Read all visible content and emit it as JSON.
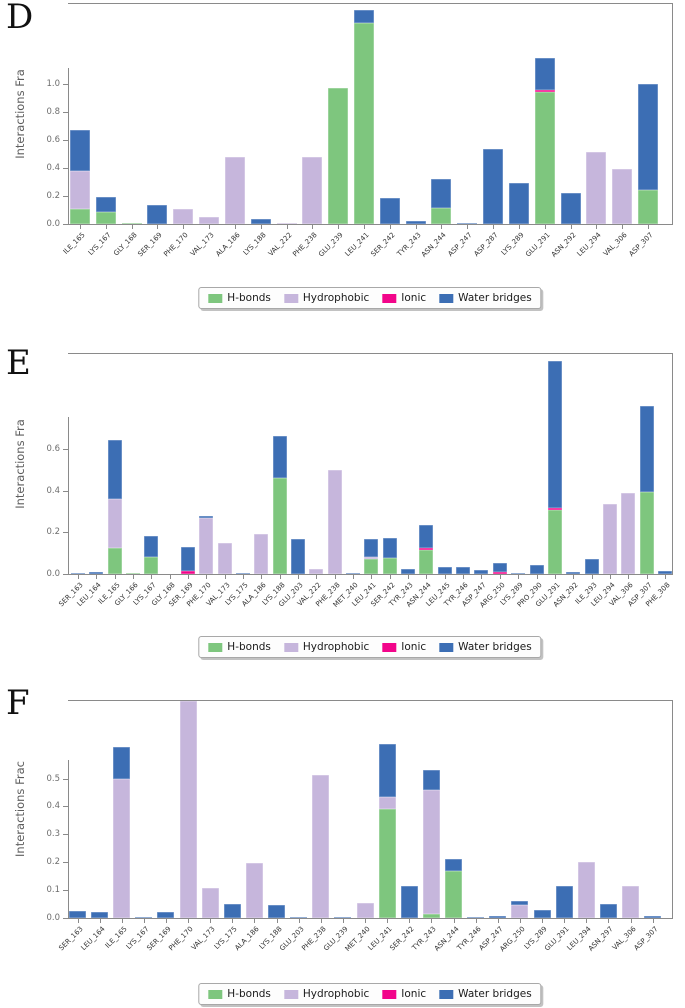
{
  "colors": {
    "hbonds": "#7ec67e",
    "hydrophobic": "#c6b6dc",
    "ionic": "#f2058a",
    "water": "#3c6eb4",
    "spine": "#8a8a8a"
  },
  "legend": {
    "items": [
      {
        "key": "hbonds",
        "label": "H-bonds"
      },
      {
        "key": "hydrophobic",
        "label": "Hydrophobic"
      },
      {
        "key": "ionic",
        "label": "Ionic"
      },
      {
        "key": "water",
        "label": "Water bridges"
      }
    ]
  },
  "chart_data": [
    {
      "type": "bar",
      "panel": "D",
      "ylabel": "Interactions Fra",
      "ylim": [
        0,
        1.58
      ],
      "yticks": [
        "0.0",
        "0.2",
        "0.4",
        "0.6",
        "0.8",
        "1.0"
      ],
      "legend_position": "bottom-center",
      "grid": false,
      "categories": [
        "ILE_165",
        "LYS_167",
        "GLY_168",
        "SER_169",
        "PHE_170",
        "VAL_173",
        "ALA_186",
        "LYS_188",
        "VAL_222",
        "PHE_238",
        "GLU_239",
        "LEU_241",
        "SER_242",
        "TYR_243",
        "ASN_244",
        "ASP_247",
        "ASP_287",
        "LYS_289",
        "GLU_291",
        "ASN_292",
        "LEU_294",
        "VAL_306",
        "ASP_307"
      ],
      "series": [
        {
          "name": "H-bonds",
          "key": "hbonds",
          "values": [
            0.11,
            0.085,
            0.01,
            0,
            0,
            0,
            0,
            0,
            0,
            0,
            0.975,
            1.435,
            0,
            0,
            0.115,
            0,
            0,
            0,
            0.945,
            0,
            0,
            0,
            0.245
          ]
        },
        {
          "name": "Hydrophobic",
          "key": "hydrophobic",
          "values": [
            0.27,
            0,
            0,
            0,
            0.105,
            0.05,
            0.48,
            0,
            0.005,
            0.48,
            0,
            0,
            0,
            0,
            0,
            0,
            0,
            0,
            0,
            0,
            0.515,
            0.395,
            0
          ]
        },
        {
          "name": "Ionic",
          "key": "ionic",
          "values": [
            0,
            0,
            0,
            0,
            0,
            0,
            0,
            0,
            0,
            0,
            0,
            0,
            0,
            0,
            0,
            0,
            0,
            0,
            0.01,
            0,
            0,
            0,
            0
          ]
        },
        {
          "name": "Water bridges",
          "key": "water",
          "values": [
            0.29,
            0.105,
            0,
            0.135,
            0,
            0,
            0,
            0.035,
            0,
            0,
            0,
            0.095,
            0.185,
            0.02,
            0.21,
            0.005,
            0.535,
            0.29,
            0.235,
            0.22,
            0,
            0,
            0.755
          ]
        }
      ]
    },
    {
      "type": "bar",
      "panel": "E",
      "ylabel": "Interactions Fra",
      "ylim": [
        0,
        1.0625
      ],
      "yticks": [
        "0.0",
        "0.2",
        "0.4",
        "0.6"
      ],
      "legend_position": "bottom-center",
      "grid": false,
      "categories": [
        "SER_163",
        "LEU_164",
        "ILE_165",
        "GLY_166",
        "LYS_167",
        "GLY_168",
        "SER_169",
        "PHE_170",
        "VAL_173",
        "LYS_175",
        "ALA_186",
        "LYS_188",
        "GLU_203",
        "VAL_222",
        "PHE_238",
        "MET_240",
        "LEU_241",
        "SER_242",
        "TYR_243",
        "ASN_244",
        "LEU_245",
        "TYR_246",
        "ASP_247",
        "ARG_250",
        "LYS_289",
        "PRO_290",
        "GLU_291",
        "ASN_292",
        "ILE_293",
        "LEU_294",
        "VAL_306",
        "ASP_307",
        "PHE_308"
      ],
      "series": [
        {
          "name": "H-bonds",
          "key": "hbonds",
          "values": [
            0,
            0,
            0.125,
            0.005,
            0.08,
            0,
            0,
            0,
            0,
            0,
            0,
            0.46,
            0,
            0,
            0,
            0,
            0.07,
            0.078,
            0,
            0.115,
            0,
            0,
            0,
            0,
            0,
            0,
            0.308,
            0,
            0,
            0,
            0,
            0.395,
            0
          ]
        },
        {
          "name": "Hydrophobic",
          "key": "hydrophobic",
          "values": [
            0,
            0,
            0.235,
            0,
            0,
            0,
            0,
            0.27,
            0.15,
            0,
            0.19,
            0,
            0,
            0.025,
            0.5,
            0,
            0.013,
            0,
            0,
            0,
            0,
            0,
            0,
            0,
            0,
            0,
            0,
            0,
            0,
            0.335,
            0.39,
            0,
            0
          ]
        },
        {
          "name": "Ionic",
          "key": "ionic",
          "values": [
            0,
            0,
            0,
            0,
            0,
            0,
            0.015,
            0,
            0,
            0,
            0,
            0,
            0,
            0,
            0,
            0,
            0,
            0,
            0,
            0.012,
            0,
            0,
            0,
            0.012,
            0,
            0,
            0.01,
            0,
            0,
            0,
            0,
            0,
            0
          ]
        },
        {
          "name": "Water bridges",
          "key": "water",
          "values": [
            0.005,
            0.008,
            0.285,
            0,
            0.105,
            0,
            0.115,
            0.01,
            0,
            0.003,
            0,
            0.205,
            0.17,
            0,
            0,
            0.003,
            0.085,
            0.097,
            0.025,
            0.108,
            0.035,
            0.035,
            0.02,
            0.042,
            0.003,
            0.045,
            0.707,
            0.01,
            0.07,
            0,
            0,
            0.415,
            0.015
          ]
        }
      ]
    },
    {
      "type": "bar",
      "panel": "F",
      "ylabel": "Interactions Frac",
      "ylim": [
        0,
        0.782
      ],
      "yticks": [
        "0.0",
        "0.1",
        "0.2",
        "0.3",
        "0.4",
        "0.5"
      ],
      "legend_position": "bottom-center",
      "grid": false,
      "categories": [
        "SER_163",
        "LEU_164",
        "ILE_165",
        "LYS_167",
        "SER_169",
        "PHE_170",
        "VAL_173",
        "LYS_175",
        "ALA_186",
        "LYS_188",
        "GLU_203",
        "PHE_238",
        "GLU_239",
        "MET_240",
        "LEU_241",
        "SER_242",
        "TYR_243",
        "ASN_244",
        "TYR_246",
        "ASP_247",
        "ARG_250",
        "LYS_289",
        "GLU_291",
        "LEU_294",
        "ASN_297",
        "VAL_306",
        "ASP_307"
      ],
      "series": [
        {
          "name": "H-bonds",
          "key": "hbonds",
          "values": [
            0,
            0,
            0,
            0,
            0,
            0,
            0,
            0,
            0,
            0,
            0,
            0,
            0,
            0,
            0.39,
            0,
            0.015,
            0.17,
            0,
            0,
            0,
            0,
            0,
            0,
            0,
            0,
            0
          ]
        },
        {
          "name": "Hydrophobic",
          "key": "hydrophobic",
          "values": [
            0,
            0,
            0.5,
            0,
            0,
            0.78,
            0.107,
            0,
            0.198,
            0,
            0,
            0.513,
            0,
            0.055,
            0.045,
            0,
            0.445,
            0,
            0,
            0,
            0.048,
            0,
            0,
            0.2,
            0,
            0.115,
            0
          ]
        },
        {
          "name": "Ionic",
          "key": "ionic",
          "values": [
            0,
            0,
            0,
            0,
            0,
            0,
            0,
            0,
            0,
            0,
            0,
            0,
            0,
            0,
            0,
            0,
            0,
            0,
            0,
            0,
            0,
            0,
            0,
            0,
            0,
            0,
            0
          ]
        },
        {
          "name": "Water bridges",
          "key": "water",
          "values": [
            0.025,
            0.02,
            0.115,
            0.005,
            0.022,
            0,
            0,
            0.05,
            0,
            0.047,
            0.005,
            0,
            0.005,
            0,
            0.19,
            0.115,
            0.07,
            0.04,
            0.004,
            0.007,
            0.012,
            0.028,
            0.115,
            0,
            0.05,
            0,
            0.007
          ]
        }
      ]
    }
  ]
}
